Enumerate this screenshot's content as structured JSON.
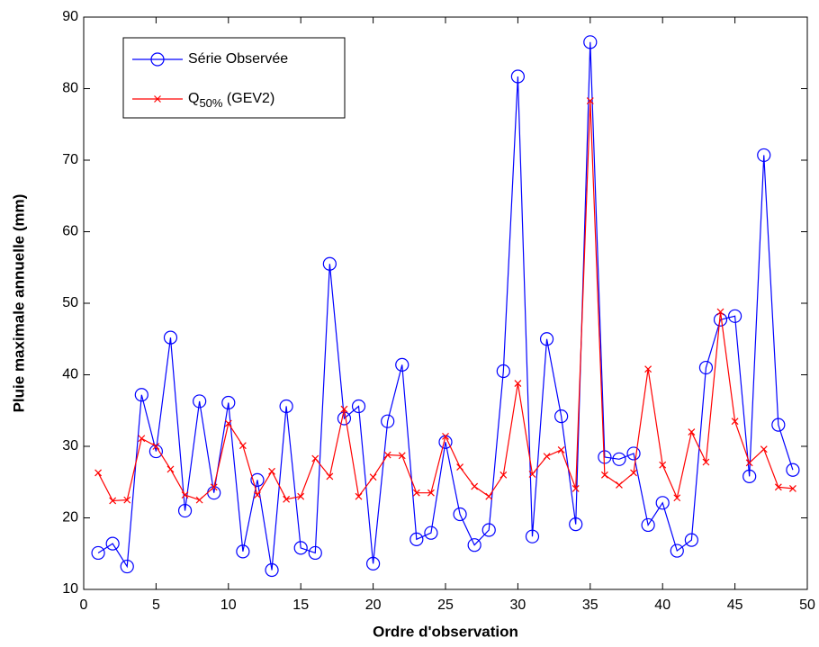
{
  "chart_data": {
    "type": "line",
    "xlabel": "Ordre d'observation",
    "ylabel": "Pluie maximale annuelle (mm)",
    "x": [
      1,
      2,
      3,
      4,
      5,
      6,
      7,
      8,
      9,
      10,
      11,
      12,
      13,
      14,
      15,
      16,
      17,
      18,
      19,
      20,
      21,
      22,
      23,
      24,
      25,
      26,
      27,
      28,
      29,
      30,
      31,
      32,
      33,
      34,
      35,
      36,
      37,
      38,
      39,
      40,
      41,
      42,
      43,
      44,
      45,
      46,
      47,
      48,
      49
    ],
    "series": [
      {
        "name": "Série Observée",
        "color": "#0000ff",
        "marker": "circle",
        "values": [
          15.1,
          16.4,
          13.2,
          37.2,
          29.3,
          45.2,
          21,
          36.3,
          23.5,
          36.1,
          15.3,
          25.3,
          12.7,
          35.6,
          15.8,
          15.1,
          55.5,
          33.9,
          35.6,
          13.6,
          33.5,
          41.4,
          17,
          17.9,
          30.6,
          20.5,
          16.2,
          18.3,
          40.5,
          81.7,
          17.4,
          45,
          34.2,
          19.1,
          86.5,
          28.5,
          28.2,
          29,
          19,
          22.1,
          15.4,
          16.9,
          41,
          47.7,
          48.2,
          25.8,
          70.7,
          33,
          26.7
        ]
      },
      {
        "name": "Q50% (GEV2)",
        "color": "#ff0000",
        "marker": "x",
        "values": [
          26.3,
          22.4,
          22.5,
          31.1,
          30,
          26.8,
          23.2,
          22.5,
          24.3,
          33.2,
          30.1,
          23.2,
          26.5,
          22.6,
          23,
          28.3,
          25.8,
          35.2,
          23,
          25.7,
          28.8,
          28.7,
          23.5,
          23.5,
          31.4,
          27.1,
          24.4,
          23,
          26,
          38.8,
          26.1,
          28.6,
          29.5,
          24.1,
          78.3,
          26,
          24.6,
          26.3,
          40.8,
          27.4,
          22.8,
          32,
          27.8,
          48.8,
          33.5,
          27.7,
          29.6,
          24.3,
          24.1
        ]
      }
    ],
    "xlim": [
      0,
      50
    ],
    "xticks": [
      0,
      5,
      10,
      15,
      20,
      25,
      30,
      35,
      40,
      45,
      50
    ],
    "ylim": [
      10,
      90
    ],
    "yticks": [
      10,
      20,
      30,
      40,
      50,
      60,
      70,
      80,
      90
    ],
    "grid": false,
    "legend": "upper left"
  }
}
